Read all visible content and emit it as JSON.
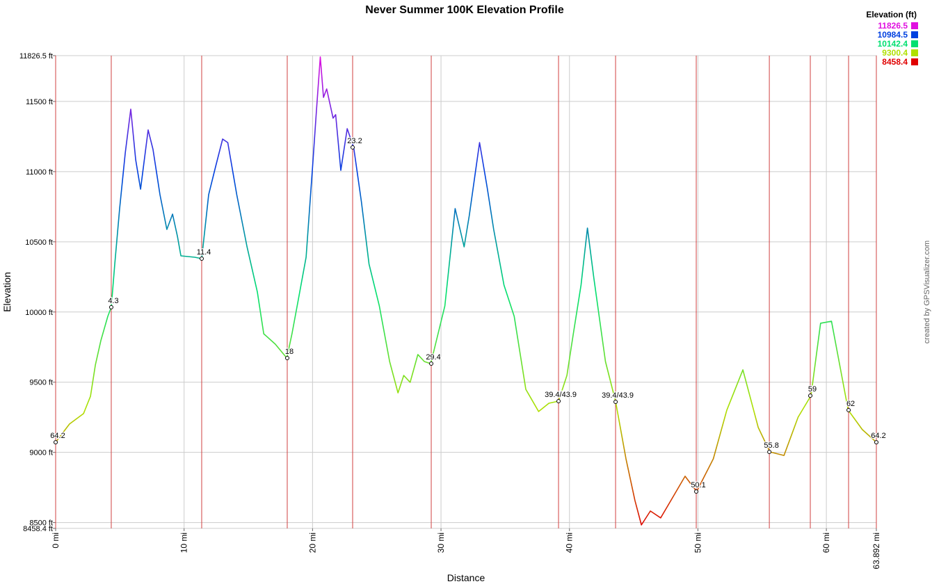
{
  "chart_data": {
    "type": "line",
    "title": "Never Summer 100K Elevation Profile",
    "x_label": "Distance",
    "y_label": "Elevation",
    "credit": "created by GPSVisualizer.com",
    "legend_title": "Elevation (ft)",
    "legend": [
      {
        "label": "11826.5",
        "value": 11826.5,
        "color": "#e010e0"
      },
      {
        "label": "10984.5",
        "value": 10984.5,
        "color": "#0040e0"
      },
      {
        "label": "10142.4",
        "value": 10142.4,
        "color": "#00e070"
      },
      {
        "label": "9300.4",
        "value": 9300.4,
        "color": "#b0e000"
      },
      {
        "label": "8458.4",
        "value": 8458.4,
        "color": "#e00000"
      }
    ],
    "x": [
      0,
      1.08,
      2.17,
      2.71,
      3.09,
      3.52,
      4.06,
      4.33,
      4.6,
      4.98,
      5.42,
      5.85,
      6.23,
      6.61,
      7.2,
      7.58,
      8.12,
      8.66,
      9.1,
      9.48,
      9.75,
      10.83,
      11.37,
      11.91,
      12.45,
      13.0,
      13.4,
      14.1,
      14.9,
      15.7,
      16.2,
      17.1,
      18.0,
      18.4,
      18.9,
      19.5,
      20.0,
      20.3,
      20.6,
      20.85,
      21.1,
      21.6,
      21.8,
      22.2,
      22.7,
      23.2,
      23.8,
      24.4,
      25.2,
      26.0,
      26.65,
      27.1,
      27.6,
      28.2,
      28.7,
      29.2,
      30.3,
      31.1,
      31.8,
      32.2,
      33.0,
      33.6,
      34.1,
      34.9,
      35.7,
      36.6,
      37.6,
      38.4,
      39.15,
      39.8,
      40.3,
      40.9,
      41.4,
      41.9,
      42.8,
      43.6,
      44.4,
      45.1,
      45.6,
      46.3,
      47.1,
      47.9,
      49.0,
      49.9,
      51.2,
      52.25,
      53.5,
      54.7,
      55.6,
      56.7,
      57.8,
      58.8,
      59.55,
      60.4,
      61.7,
      62.8,
      63.892
    ],
    "series": [
      {
        "name": "Elevation",
        "values": [
          9072,
          9202,
          9276,
          9400,
          9622,
          9796,
          9969,
          10034,
          10341,
          10737,
          11133,
          11445,
          11084,
          10875,
          11297,
          11158,
          10836,
          10588,
          10697,
          10539,
          10400,
          10390,
          10380,
          10836,
          11034,
          11232,
          11207,
          10836,
          10464,
          10143,
          9845,
          9771,
          9672,
          9845,
          10093,
          10390,
          11034,
          11430,
          11817,
          11529,
          11589,
          11381,
          11406,
          11009,
          11306,
          11173,
          10786,
          10341,
          10043,
          9647,
          9424,
          9548,
          9499,
          9697,
          9647,
          9632,
          10043,
          10737,
          10464,
          10687,
          11207,
          10885,
          10588,
          10192,
          9969,
          9449,
          9291,
          9350,
          9365,
          9548,
          9845,
          10192,
          10598,
          10242,
          9647,
          9360,
          8954,
          8657,
          8483,
          8582,
          8533,
          8657,
          8830,
          8721,
          8954,
          9301,
          9588,
          9177,
          9003,
          8978,
          9251,
          9404,
          9920,
          9934,
          9301,
          9162,
          9072
        ]
      }
    ],
    "waypoints": [
      {
        "label": "64.2",
        "x": 0,
        "y": 9072
      },
      {
        "label": "4.3",
        "x": 4.33,
        "y": 10034
      },
      {
        "label": "11.4",
        "x": 11.37,
        "y": 10380
      },
      {
        "label": "18",
        "x": 18.03,
        "y": 9672
      },
      {
        "label": "23.2",
        "x": 23.12,
        "y": 11173
      },
      {
        "label": "29.4",
        "x": 29.24,
        "y": 9632
      },
      {
        "label": "39.4/43.9",
        "x": 39.15,
        "y": 9365
      },
      {
        "label": "39.4/43.9",
        "x": 43.59,
        "y": 9360
      },
      {
        "label": "50.1",
        "x": 49.87,
        "y": 8721
      },
      {
        "label": "55.8",
        "x": 55.56,
        "y": 9003
      },
      {
        "label": "59",
        "x": 58.75,
        "y": 9404
      },
      {
        "label": "62",
        "x": 61.73,
        "y": 9301
      },
      {
        "label": "64.2",
        "x": 63.892,
        "y": 9072
      }
    ],
    "xlim": [
      0,
      63.892
    ],
    "ylim": [
      8458.4,
      11826.5
    ],
    "xticks": [
      {
        "value": 0,
        "label": "0 mi"
      },
      {
        "value": 10,
        "label": "10 mi"
      },
      {
        "value": 20,
        "label": "20 mi"
      },
      {
        "value": 30,
        "label": "30 mi"
      },
      {
        "value": 40,
        "label": "40 mi"
      },
      {
        "value": 50,
        "label": "50 mi"
      },
      {
        "value": 60,
        "label": "60 mi"
      },
      {
        "value": 63.892,
        "label": "63.892 mi"
      }
    ],
    "yticks": [
      {
        "value": 8458.4,
        "label": "8458.4 ft"
      },
      {
        "value": 8500,
        "label": "8500 ft"
      },
      {
        "value": 9000,
        "label": "9000 ft"
      },
      {
        "value": 9500,
        "label": "9500 ft"
      },
      {
        "value": 10000,
        "label": "10000 ft"
      },
      {
        "value": 10500,
        "label": "10500 ft"
      },
      {
        "value": 11000,
        "label": "11000 ft"
      },
      {
        "value": 11500,
        "label": "11500 ft"
      },
      {
        "value": 11826.5,
        "label": "11826.5 ft"
      }
    ],
    "grid": true,
    "waypoint_line_color": "#d04040"
  }
}
